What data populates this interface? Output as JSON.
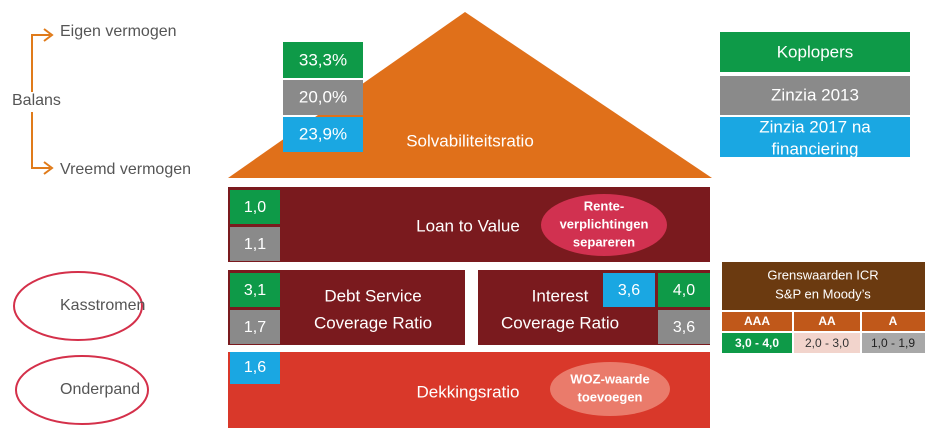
{
  "balance": {
    "equity": "Eigen vermogen",
    "label": "Balans",
    "debt": "Vreemd vermogen"
  },
  "circled": [
    "Kasstromen",
    "Onderpand"
  ],
  "legend": [
    "Koplopers",
    "Zinzia 2013",
    [
      "Zinzia 2017 na",
      "financiering"
    ]
  ],
  "roof": {
    "label": "Solvabiliteitsratio",
    "koplopers": "33,3%",
    "zinzia_2013": "20,0%",
    "zinzia_2017": "23,9%"
  },
  "loan_to_value": {
    "label": "Loan to Value",
    "koplopers": "1,0",
    "zinzia_2013": "1,1",
    "note": [
      "Rente-",
      "verplichtingen",
      "separeren"
    ]
  },
  "dscr": {
    "label": [
      "Debt Service",
      "Coverage Ratio"
    ],
    "koplopers": "3,1",
    "zinzia_2013": "1,7"
  },
  "icr": {
    "label": [
      "Interest",
      "Coverage Ratio"
    ],
    "zinzia_2017": "3,6",
    "koplopers": "4,0",
    "zinzia_2013": "3,6"
  },
  "coverage": {
    "label": "Dekkingsratio",
    "zinzia_2017": "1,6",
    "note": [
      "WOZ-waarde",
      "toevoegen"
    ]
  },
  "thresholds": {
    "title": [
      "Grenswaarden ICR",
      "S&P en Moody’s"
    ],
    "ratings": [
      "AAA",
      "AA",
      "A"
    ],
    "ranges": [
      "3,0 - 4,0",
      "2,0 - 3,0",
      "1,0 - 1,9"
    ]
  }
}
